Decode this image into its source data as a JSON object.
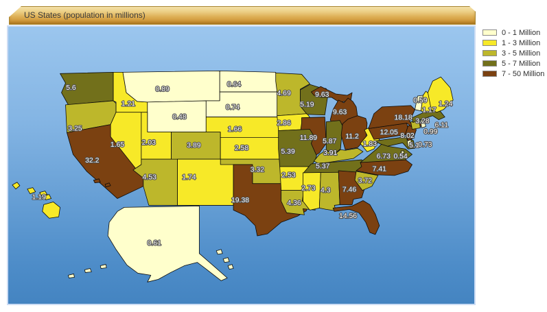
{
  "chart_data": {
    "type": "heatmap",
    "subtype": "choropleth-us-states",
    "title": "US States (population in millions)",
    "unit": "millions of people",
    "legend_position": "top-right",
    "bins": [
      {
        "label": "0 - 1 Million",
        "min": 0,
        "max": 1,
        "color": "#FFFFCC"
      },
      {
        "label": "1 - 3 Million",
        "min": 1,
        "max": 3,
        "color": "#F7E928"
      },
      {
        "label": "3 - 5 Million",
        "min": 3,
        "max": 5,
        "color": "#BDB72B"
      },
      {
        "label": "5 - 7 Million",
        "min": 5,
        "max": 7,
        "color": "#72701B"
      },
      {
        "label": "7 - 50 Million",
        "min": 7,
        "max": 50,
        "color": "#7B4111"
      }
    ],
    "series": [
      {
        "state": "WA",
        "value": 5.6
      },
      {
        "state": "OR",
        "value": 3.25
      },
      {
        "state": "CA",
        "value": 32.2
      },
      {
        "state": "ID",
        "value": 1.21
      },
      {
        "state": "NV",
        "value": 1.65
      },
      {
        "state": "UT",
        "value": 2.03
      },
      {
        "state": "AZ",
        "value": 4.53
      },
      {
        "state": "MT",
        "value": 0.89
      },
      {
        "state": "WY",
        "value": 0.48
      },
      {
        "state": "CO",
        "value": 3.89
      },
      {
        "state": "NM",
        "value": 1.74
      },
      {
        "state": "ND",
        "value": 0.64
      },
      {
        "state": "SD",
        "value": 0.74
      },
      {
        "state": "NE",
        "value": 1.66
      },
      {
        "state": "KS",
        "value": 2.58
      },
      {
        "state": "OK",
        "value": 3.32
      },
      {
        "state": "TX",
        "value": 19.38
      },
      {
        "state": "MN",
        "value": 4.69
      },
      {
        "state": "IA",
        "value": 2.86
      },
      {
        "state": "MO",
        "value": 5.39
      },
      {
        "state": "AR",
        "value": 2.53
      },
      {
        "state": "LA",
        "value": 4.36
      },
      {
        "state": "WI",
        "value": 5.19
      },
      {
        "state": "IL",
        "value": 11.89
      },
      {
        "state": "MS",
        "value": 2.73
      },
      {
        "state": "MI",
        "value": 9.63
      },
      {
        "state": "IN",
        "value": 5.87
      },
      {
        "state": "OH",
        "value": 11.2
      },
      {
        "state": "KY",
        "value": 3.91
      },
      {
        "state": "TN",
        "value": 5.37
      },
      {
        "state": "WV",
        "value": 1.83
      },
      {
        "state": "VA",
        "value": 6.73
      },
      {
        "state": "DC",
        "value": 0.54
      },
      {
        "state": "MD",
        "value": 5.1
      },
      {
        "state": "DE",
        "value": 0.73
      },
      {
        "state": "NC",
        "value": 7.41
      },
      {
        "state": "SC",
        "value": 3.72
      },
      {
        "state": "GA",
        "value": 7.46
      },
      {
        "state": "AL",
        "value": 4.3
      },
      {
        "state": "FL",
        "value": 14.56
      },
      {
        "state": "PA",
        "value": 12.05
      },
      {
        "state": "NJ",
        "value": 8.02
      },
      {
        "state": "NY",
        "value": 18.18
      },
      {
        "state": "CT",
        "value": 3.28
      },
      {
        "state": "MA",
        "value": 6.11
      },
      {
        "state": "RI",
        "value": 0.99
      },
      {
        "state": "VT",
        "value": 0.59
      },
      {
        "state": "NH",
        "value": 1.17
      },
      {
        "state": "ME",
        "value": 1.24
      },
      {
        "state": "AK",
        "value": 0.61
      },
      {
        "state": "HI",
        "value": 1.19
      }
    ]
  }
}
